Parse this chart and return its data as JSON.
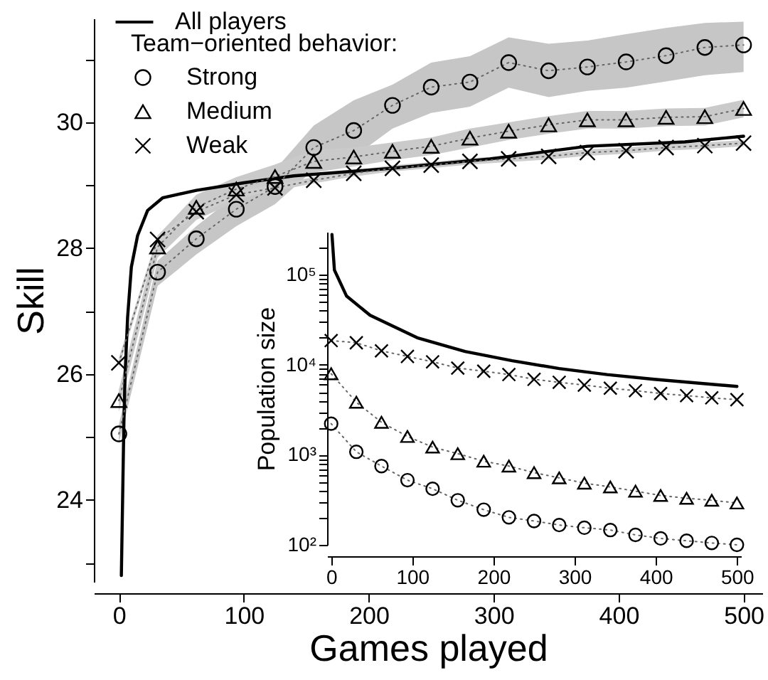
{
  "chart_data": [
    {
      "type": "line",
      "xlabel": "Games played",
      "ylabel": "Skill",
      "legend_title": "Team−oriented behavior:",
      "legend": "top left",
      "grid": false,
      "xlim": [
        -20,
        515
      ],
      "ylim": [
        22.7,
        31.65
      ],
      "xticks": [
        0,
        100,
        200,
        300,
        400,
        500
      ],
      "yticks": [
        {
          "value": 23,
          "label": null
        },
        24,
        {
          "value": 25,
          "label": null
        },
        26,
        {
          "value": 27,
          "label": null
        },
        28,
        {
          "value": 29,
          "label": null
        },
        30,
        {
          "value": 31,
          "label": null
        }
      ],
      "x": [
        0,
        31,
        62,
        94,
        125,
        156,
        188,
        219,
        250,
        281,
        312,
        344,
        375,
        406,
        438,
        469,
        500
      ],
      "series": [
        {
          "name": "All players",
          "color": "#000000",
          "marker": "none",
          "line_style": "solid",
          "x": [
            2,
            3,
            4,
            5,
            7,
            10,
            15,
            23,
            35,
            62,
            100,
            140,
            218,
            297,
            375,
            453,
            500
          ],
          "values": [
            22.8,
            24,
            25.2,
            26,
            26.9,
            27.7,
            28.2,
            28.6,
            28.8,
            28.92,
            29.04,
            29.15,
            29.27,
            29.42,
            29.62,
            29.69,
            29.78
          ]
        },
        {
          "name": "Strong",
          "color": "#000000",
          "marker": "circle",
          "line_style": "dotted",
          "values": [
            25.05,
            27.62,
            28.15,
            28.62,
            28.98,
            29.6,
            29.87,
            30.27,
            30.56,
            30.64,
            30.95,
            30.82,
            30.88,
            30.96,
            31.06,
            31.19,
            31.23
          ],
          "lower": [
            24.9,
            27.4,
            27.9,
            28.35,
            28.7,
            29.25,
            29.45,
            29.9,
            30.15,
            30.25,
            30.55,
            30.4,
            30.5,
            30.55,
            30.65,
            30.75,
            30.8
          ],
          "upper": [
            25.2,
            27.8,
            28.35,
            28.85,
            29.25,
            29.95,
            30.35,
            30.6,
            30.95,
            31.05,
            31.35,
            31.25,
            31.3,
            31.4,
            31.5,
            31.58,
            31.6
          ]
        },
        {
          "name": "Medium",
          "color": "#000000",
          "marker": "triangle",
          "line_style": "dotted",
          "values": [
            25.58,
            28.02,
            28.65,
            28.94,
            29.14,
            29.38,
            29.45,
            29.54,
            29.62,
            29.75,
            29.86,
            29.96,
            30.04,
            30.04,
            30.08,
            30.09,
            30.22
          ],
          "lower": [
            25.4,
            27.85,
            28.45,
            28.75,
            28.95,
            29.2,
            29.3,
            29.4,
            29.48,
            29.6,
            29.72,
            29.82,
            29.9,
            29.9,
            29.94,
            29.95,
            30.08
          ],
          "upper": [
            25.75,
            28.2,
            28.85,
            29.13,
            29.33,
            29.56,
            29.6,
            29.68,
            29.76,
            29.9,
            30.0,
            30.1,
            30.18,
            30.18,
            30.22,
            30.23,
            30.36
          ]
        },
        {
          "name": "Weak",
          "color": "#000000",
          "marker": "cross",
          "line_style": "dotted",
          "values": [
            26.18,
            28.14,
            28.58,
            28.85,
            28.96,
            29.08,
            29.19,
            29.27,
            29.32,
            29.38,
            29.42,
            29.46,
            29.52,
            29.55,
            29.6,
            29.63,
            29.67
          ],
          "lower": [
            26.1,
            28.08,
            28.52,
            28.8,
            28.91,
            29.03,
            29.14,
            29.22,
            29.27,
            29.33,
            29.37,
            29.41,
            29.47,
            29.5,
            29.55,
            29.58,
            29.62
          ],
          "upper": [
            26.26,
            28.2,
            28.64,
            28.9,
            29.01,
            29.13,
            29.24,
            29.32,
            29.37,
            29.43,
            29.47,
            29.51,
            29.57,
            29.6,
            29.65,
            29.68,
            29.72
          ]
        }
      ]
    },
    {
      "type": "line",
      "ylabel": "Population size",
      "log": "y",
      "grid": false,
      "xlim": [
        -5,
        505
      ],
      "ylim": [
        100,
        300000
      ],
      "xticks": [
        0,
        100,
        200,
        300,
        400,
        500
      ],
      "yticks": [
        {
          "value": 100,
          "label": "10²"
        },
        {
          "value": 200,
          "label": null
        },
        {
          "value": 300,
          "label": null
        },
        {
          "value": 400,
          "label": null
        },
        {
          "value": 500,
          "label": null
        },
        {
          "value": 600,
          "label": null
        },
        {
          "value": 700,
          "label": null
        },
        {
          "value": 800,
          "label": null
        },
        {
          "value": 900,
          "label": null
        },
        {
          "value": 1000,
          "label": "10³"
        },
        {
          "value": 2000,
          "label": null
        },
        {
          "value": 3000,
          "label": null
        },
        {
          "value": 4000,
          "label": null
        },
        {
          "value": 5000,
          "label": null
        },
        {
          "value": 6000,
          "label": null
        },
        {
          "value": 7000,
          "label": null
        },
        {
          "value": 8000,
          "label": null
        },
        {
          "value": 9000,
          "label": null
        },
        {
          "value": 10000,
          "label": "10⁴"
        },
        {
          "value": 20000,
          "label": null
        },
        {
          "value": 30000,
          "label": null
        },
        {
          "value": 40000,
          "label": null
        },
        {
          "value": 50000,
          "label": null
        },
        {
          "value": 60000,
          "label": null
        },
        {
          "value": 70000,
          "label": null
        },
        {
          "value": 80000,
          "label": null
        },
        {
          "value": 90000,
          "label": null
        },
        {
          "value": 100000,
          "label": "10⁵"
        },
        {
          "value": 200000,
          "label": null
        }
      ],
      "x": [
        0,
        31,
        62,
        94,
        125,
        156,
        188,
        219,
        250,
        281,
        312,
        344,
        375,
        406,
        438,
        469,
        500
      ],
      "series": [
        {
          "color": "#000000",
          "marker": "none",
          "line_style": "solid",
          "x": [
            1,
            4,
            19,
            48,
            106,
            165,
            223,
            281,
            340,
            398,
            500
          ],
          "values": [
            280000,
            113000,
            58000,
            35500,
            20000,
            14100,
            11100,
            9100,
            7800,
            6900,
            5760
          ]
        },
        {
          "color": "#000000",
          "marker": "circle",
          "line_style": "dotted",
          "values": [
            2220,
            1080,
            750,
            523,
            420,
            313,
            246,
            202,
            184,
            166,
            155,
            146,
            129,
            118,
            111,
            105,
            100
          ]
        },
        {
          "color": "#000000",
          "marker": "triangle",
          "line_style": "dotted",
          "values": [
            7960,
            3840,
            2300,
            1600,
            1220,
            1030,
            850,
            750,
            634,
            555,
            485,
            440,
            395,
            354,
            329,
            313,
            292
          ]
        },
        {
          "color": "#000000",
          "marker": "cross",
          "line_style": "dotted",
          "values": [
            18600,
            17600,
            14300,
            12400,
            10800,
            9200,
            8500,
            7800,
            6900,
            6400,
            5950,
            5500,
            5170,
            4800,
            4550,
            4300,
            4100
          ]
        }
      ]
    }
  ]
}
